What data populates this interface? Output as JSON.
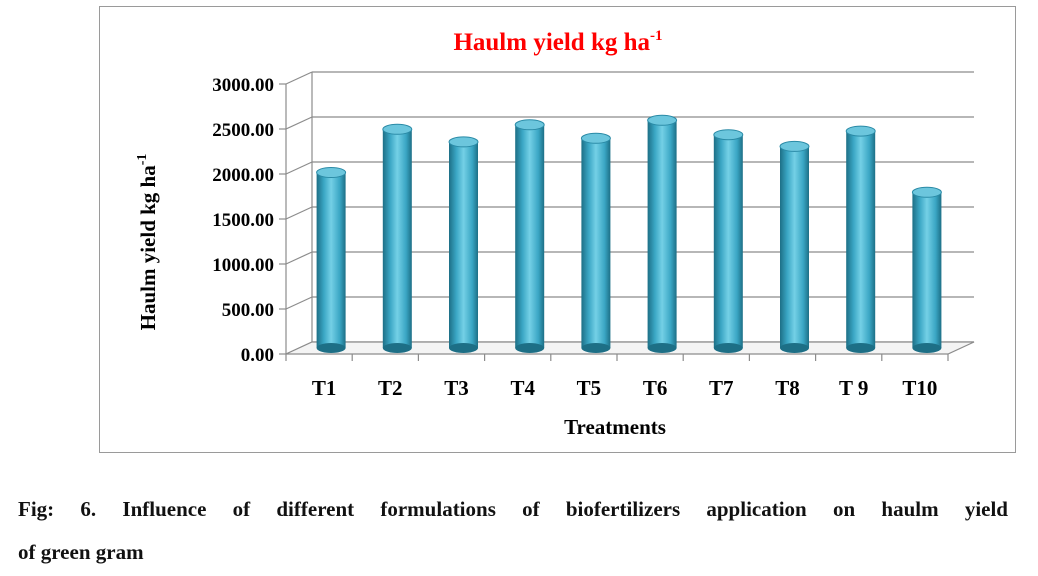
{
  "chart_data": {
    "type": "bar",
    "title": "Haulm yield kg ha",
    "title_superscript": "-1",
    "ylabel": "Haulm yield kg ha",
    "ylabel_superscript": "-1",
    "xlabel": "Treatments",
    "categories": [
      "T1",
      "T2",
      "T3",
      "T4",
      "T5",
      "T6",
      "T7",
      "T8",
      "T 9",
      "T10"
    ],
    "values": [
      1950,
      2430,
      2290,
      2480,
      2330,
      2530,
      2370,
      2240,
      2410,
      1730
    ],
    "ylim": [
      0,
      3000
    ],
    "yticks": [
      "0.00",
      "500.00",
      "1000.00",
      "1500.00",
      "2000.00",
      "2500.00",
      "3000.00"
    ],
    "grid": true,
    "bar_color": "#3aa6c4",
    "title_color": "#ff0000",
    "legend": "none"
  },
  "caption": {
    "line1": "Fig: 6. Influence of different formulations of biofertilizers application on haulm yield",
    "line2": "of green gram"
  }
}
